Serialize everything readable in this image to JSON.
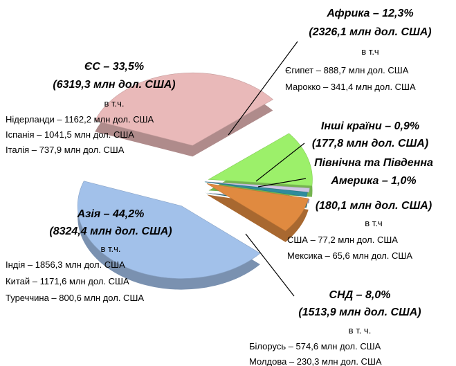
{
  "chart_data": {
    "type": "pie",
    "values": [
      33.5,
      12.3,
      0.9,
      1.0,
      8.0,
      44.2
    ],
    "value_labels": [
      "ЄС – 33,5%",
      "Африка – 12,3%",
      "Інші країни – 0,9%",
      "Північна та Південна Америка – 1,0%",
      "СНД – 8,0%",
      "Азія – 44,2%"
    ],
    "colors": [
      "#e9b9b9",
      "#9cf06a",
      "#cdc6e2",
      "#2f8c9c",
      "#e08a40",
      "#a2c1ea"
    ],
    "notes": [
      {
        "amount": "(6319,3 млн дол. США)",
        "intro": "в т.ч.",
        "items": [
          "Нідерланди – 1162,2 млн дол. США",
          "Іспанія – 1041,5 млн дол. США",
          "Італія – 737,9 млн дол. США"
        ]
      },
      {
        "amount": "(2326,1 млн дол. США)",
        "intro": "в т.ч",
        "items": [
          "Єгипет – 888,7 млн дол. США",
          "Марокко – 341,4 млн дол. США"
        ]
      },
      {
        "amount": "(177,8 млн дол. США)"
      },
      {
        "amount": "(180,1 млн дол. США)",
        "intro": "в т.ч",
        "items": [
          "США – 77,2 млн дол. США",
          "Мексика – 65,6 млн дол. США"
        ]
      },
      {
        "amount": "(1513,9 млн дол. США)",
        "intro": "в т. ч.",
        "items": [
          "Білорусь – 574,6 млн дол. США",
          "Молдова – 230,3 млн дол. США"
        ]
      },
      {
        "amount": "(8324,4 млн дол. США)",
        "intro": "в т.ч.",
        "items": [
          "Індія  – 1856,3  млн дол. США",
          "Китай – 1171,6 млн дол. США",
          "Туреччина – 800,6 млн дол. США"
        ]
      }
    ]
  }
}
